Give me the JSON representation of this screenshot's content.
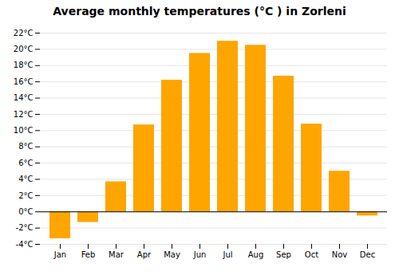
{
  "chart_data": {
    "type": "bar",
    "title": "Average monthly temperatures (°C ) in Zorleni",
    "categories": [
      "Jan",
      "Feb",
      "Mar",
      "Apr",
      "May",
      "Jun",
      "Jul",
      "Aug",
      "Sep",
      "Oct",
      "Nov",
      "Dec"
    ],
    "values": [
      -3.3,
      -1.3,
      3.7,
      10.7,
      16.2,
      19.5,
      21.0,
      20.5,
      16.7,
      10.8,
      5.0,
      -0.5
    ],
    "color": "#FFA500",
    "ylim": [
      -4,
      22
    ],
    "yticks": [
      {
        "value": -4,
        "label": "-4°C"
      },
      {
        "value": -2,
        "label": "-2°C"
      },
      {
        "value": 0,
        "label": "0°C"
      },
      {
        "value": 2,
        "label": "2°C"
      },
      {
        "value": 4,
        "label": "4°C"
      },
      {
        "value": 6,
        "label": "6°C"
      },
      {
        "value": 8,
        "label": "8°C"
      },
      {
        "value": 10,
        "label": "10°C"
      },
      {
        "value": 12,
        "label": "12°C"
      },
      {
        "value": 14,
        "label": "14°C"
      },
      {
        "value": 16,
        "label": "16°C"
      },
      {
        "value": 18,
        "label": "18°C"
      },
      {
        "value": 20,
        "label": "20°C"
      },
      {
        "value": 22,
        "label": "22°C"
      }
    ],
    "grid": true
  }
}
